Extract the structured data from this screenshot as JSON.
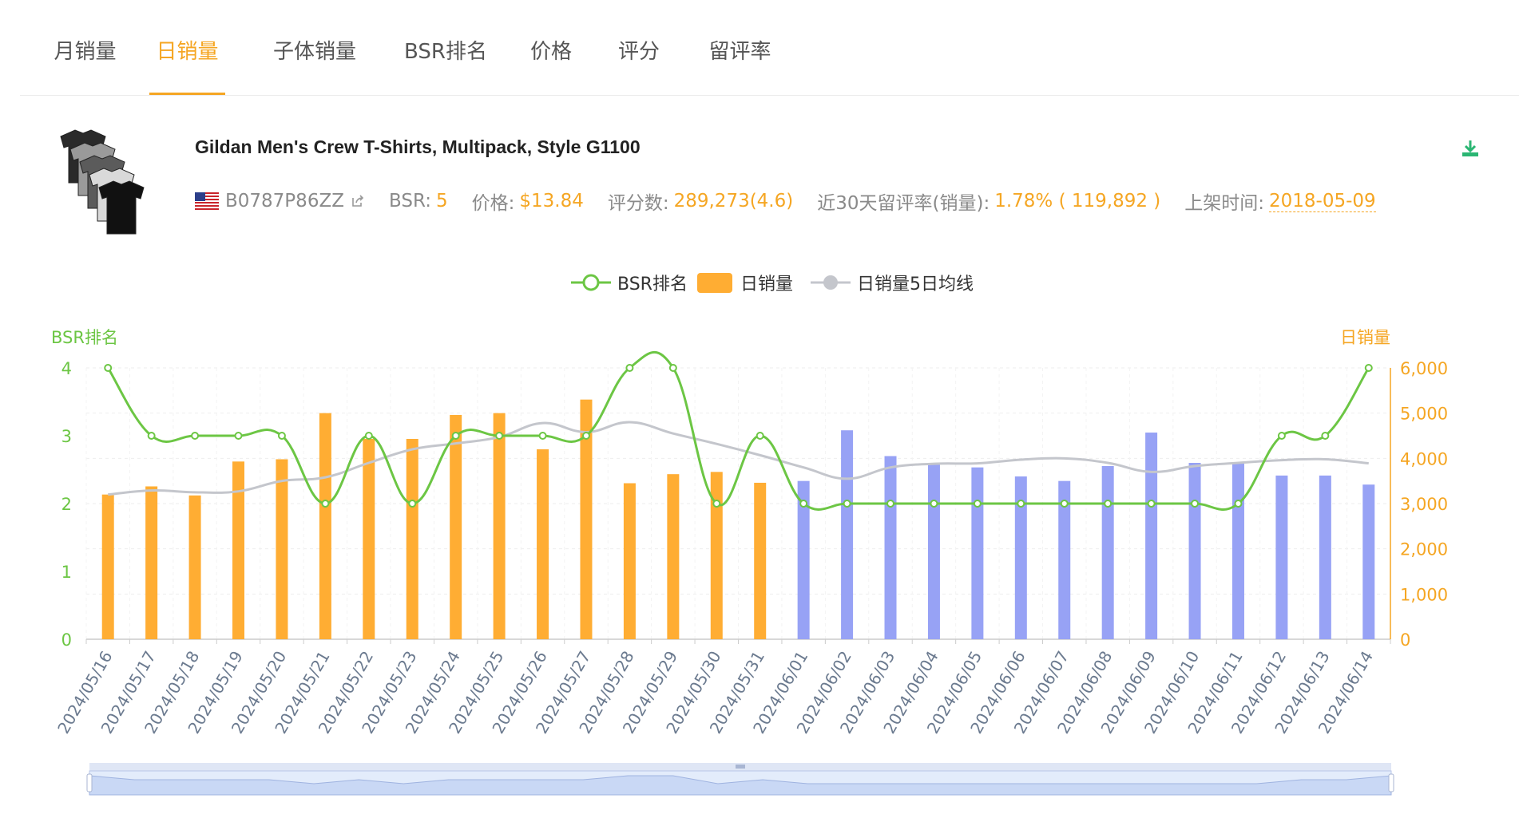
{
  "tabs": [
    {
      "label": "月销量",
      "active": false
    },
    {
      "label": "日销量",
      "active": true
    },
    {
      "label": "子体销量",
      "active": false
    },
    {
      "label": "BSR排名",
      "active": false
    },
    {
      "label": "价格",
      "active": false
    },
    {
      "label": "评分",
      "active": false
    },
    {
      "label": "留评率",
      "active": false
    }
  ],
  "product": {
    "title": "Gildan Men's Crew T-Shirts, Multipack, Style G1100",
    "asin": "B0787P86ZZ",
    "bsr_label": "BSR:",
    "bsr_value": "5",
    "price_label": "价格:",
    "price_value": "$13.84",
    "rating_label": "评分数:",
    "rating_value": "289,273(4.6)",
    "review_rate_label": "近30天留评率(销量):",
    "review_rate_value": "1.78% ( 119,892 )",
    "listed_label": "上架时间:",
    "listed_value": "2018-05-09"
  },
  "colors": {
    "accent": "#f5a623",
    "bsr_line": "#6cc644",
    "bar_past": "#ffad33",
    "bar_forecast": "#97a2f5",
    "avg_line": "#c4c6cc",
    "download": "#2bb673"
  },
  "chart_data": {
    "type": "bar",
    "legend": [
      "BSR排名",
      "日销量",
      "日销量5日均线"
    ],
    "legend_position": "top-center",
    "left_axis_label": "BSR排名",
    "right_axis_label": "日销量",
    "left_ylim": [
      0,
      4
    ],
    "left_ticks": [
      "0",
      "1",
      "2",
      "3",
      "4"
    ],
    "right_ylim": [
      0,
      6000
    ],
    "right_ticks": [
      "0",
      "1,000",
      "2,000",
      "3,000",
      "4,000",
      "5,000",
      "6,000"
    ],
    "grid": true,
    "dates": [
      "2024/05/16",
      "2024/05/17",
      "2024/05/18",
      "2024/05/19",
      "2024/05/20",
      "2024/05/21",
      "2024/05/22",
      "2024/05/23",
      "2024/05/24",
      "2024/05/25",
      "2024/05/26",
      "2024/05/27",
      "2024/05/28",
      "2024/05/29",
      "2024/05/30",
      "2024/05/31",
      "2024/06/01",
      "2024/06/02",
      "2024/06/03",
      "2024/06/04",
      "2024/06/05",
      "2024/06/06",
      "2024/06/07",
      "2024/06/08",
      "2024/06/09",
      "2024/06/10",
      "2024/06/11",
      "2024/06/12",
      "2024/06/13",
      "2024/06/14"
    ],
    "series": [
      {
        "name": "日销量",
        "axis": "right",
        "kind": "bar",
        "values": [
          3200,
          3380,
          3180,
          3930,
          3980,
          5000,
          4430,
          4430,
          4960,
          5000,
          4200,
          5300,
          3450,
          3650,
          3700,
          3460,
          3500,
          4620,
          4050,
          3900,
          3800,
          3600,
          3500,
          3830,
          4570,
          3900,
          3900,
          3620,
          3620,
          3420
        ]
      },
      {
        "name": "日销量5日均线",
        "axis": "right",
        "kind": "line",
        "values": [
          3200,
          3290,
          3250,
          3270,
          3500,
          3580,
          3900,
          4200,
          4330,
          4470,
          4780,
          4580,
          4800,
          4550,
          4320,
          4070,
          3800,
          3550,
          3800,
          3880,
          3890,
          3970,
          4000,
          3900,
          3700,
          3830,
          3900,
          3960,
          3980,
          3890
        ]
      },
      {
        "name": "BSR排名",
        "axis": "left",
        "kind": "line",
        "values": [
          4,
          3,
          3,
          3,
          3,
          2,
          3,
          2,
          3,
          3,
          3,
          3,
          4,
          4,
          2,
          3,
          2,
          2,
          2,
          2,
          2,
          2,
          2,
          2,
          2,
          2,
          2,
          3,
          3,
          4
        ]
      }
    ],
    "forecast_start_index": 16
  }
}
